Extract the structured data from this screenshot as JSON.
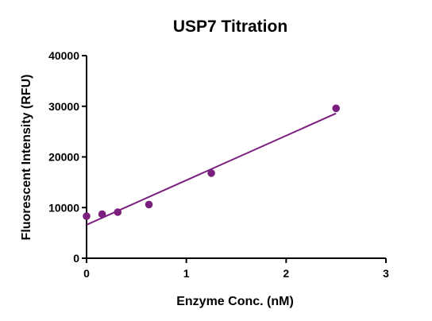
{
  "chart_data": {
    "type": "scatter",
    "title": "USP7 Titration",
    "xlabel": "Enzyme Conc. (nM)",
    "ylabel": "Fluorescent Intensity (RFU)",
    "xlim": [
      0,
      3
    ],
    "ylim": [
      0,
      40000
    ],
    "xticks": [
      0,
      1,
      2,
      3
    ],
    "yticks": [
      0,
      10000,
      20000,
      30000,
      40000
    ],
    "grid": false,
    "legend": "none",
    "series": [
      {
        "x": [
          0,
          0.156,
          0.3125,
          0.625,
          1.25,
          2.5
        ],
        "y": [
          8300,
          8700,
          9100,
          10600,
          16800,
          29600
        ],
        "color": "#7b1f7f"
      }
    ],
    "fit_line": {
      "x": [
        0,
        2.5
      ],
      "y": [
        6600,
        28600
      ],
      "color": "#7b1f7f"
    }
  }
}
